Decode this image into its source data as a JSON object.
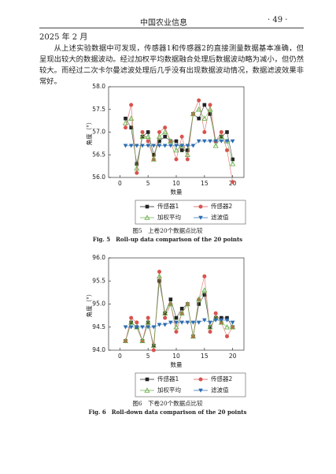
{
  "header": {
    "journal": "中国农业信息",
    "page": "· 49 ·",
    "date": "2025 年 2 月"
  },
  "paragraph": "从上述实验数据中可发现，传感器1和传感器2的直接测量数据基本准确，但呈现出较大的数据波动。经过加权平均数据融合处理后数据波动略为减小，但仍然较大。而经过二次卡尔曼滤波处理后几乎没有出现数据波动情况，数据滤波效果非常好。",
  "chart_data": [
    {
      "type": "line",
      "caption_cn": "图5　上卷20个数据点比较",
      "caption_en": "Fig. 5　Roll-up data comparison of the 20 points",
      "xlabel": "数量",
      "ylabel": "角度（°）",
      "x": [
        1,
        2,
        3,
        4,
        5,
        6,
        7,
        8,
        9,
        10,
        11,
        12,
        13,
        14,
        15,
        16,
        17,
        18,
        19,
        20
      ],
      "xlim": [
        -2,
        22
      ],
      "xticks": [
        0,
        5,
        10,
        15,
        20
      ],
      "ylim": [
        56,
        58
      ],
      "yticks": [
        {
          "value": 56,
          "label": "56.0"
        },
        {
          "value": 56.5,
          "label": "56.5"
        },
        {
          "value": 57,
          "label": "57.0"
        },
        {
          "value": 57.5,
          "label": "57.5"
        },
        {
          "value": 58,
          "label": "58.0"
        }
      ],
      "series": [
        {
          "name": "传感器1",
          "color": "#222222",
          "marker": "square",
          "values": [
            57.3,
            57.1,
            56.3,
            56.9,
            57.0,
            56.5,
            56.8,
            56.9,
            56.8,
            56.8,
            56.6,
            56.6,
            57.4,
            57.3,
            57.6,
            57.4,
            56.8,
            56.9,
            57.0,
            56.4
          ]
        },
        {
          "name": "传感器2",
          "color": "#d9534f",
          "marker": "circle",
          "values": [
            57.1,
            57.6,
            56.1,
            57.0,
            56.8,
            56.4,
            57.0,
            57.1,
            56.8,
            56.4,
            56.9,
            56.4,
            57.4,
            57.7,
            57.0,
            57.6,
            56.8,
            57.0,
            56.6,
            55.9
          ]
        },
        {
          "name": "加权平均",
          "color": "#6ab04c",
          "marker": "triangle",
          "values": [
            57.2,
            57.3,
            56.2,
            56.9,
            56.9,
            56.4,
            56.9,
            57.0,
            56.8,
            56.6,
            56.7,
            56.5,
            57.4,
            57.5,
            57.3,
            57.5,
            56.7,
            56.9,
            56.8,
            56.3
          ]
        },
        {
          "name": "滤波值",
          "color": "#2b6cb0",
          "marker": "down",
          "values": [
            56.7,
            56.7,
            56.7,
            56.7,
            56.7,
            56.7,
            56.7,
            56.7,
            56.7,
            56.7,
            56.7,
            56.7,
            56.7,
            56.8,
            56.8,
            56.8,
            56.8,
            56.8,
            56.8,
            56.8
          ]
        }
      ]
    },
    {
      "type": "line",
      "caption_cn": "图6　下卷20个数据点比较",
      "caption_en": "Fig. 6　Roll-down data comparison of the 20 points",
      "xlabel": "数量",
      "ylabel": "角度（°）",
      "x": [
        1,
        2,
        3,
        4,
        5,
        6,
        7,
        8,
        9,
        10,
        11,
        12,
        13,
        14,
        15,
        16,
        17,
        18,
        19,
        20
      ],
      "xlim": [
        -2,
        22
      ],
      "xticks": [
        0,
        5,
        10,
        15,
        20
      ],
      "ylim": [
        94,
        96
      ],
      "yticks": [
        {
          "value": 94,
          "label": "94.0"
        },
        {
          "value": 94.5,
          "label": "94.5"
        },
        {
          "value": 95,
          "label": "95.0"
        },
        {
          "value": 95.5,
          "label": "95.5"
        },
        {
          "value": 96,
          "label": "96.0"
        }
      ],
      "series": [
        {
          "name": "传感器1",
          "color": "#222222",
          "marker": "square",
          "values": [
            94.2,
            94.6,
            94.5,
            94.2,
            94.6,
            94.1,
            95.5,
            94.8,
            95.1,
            94.7,
            94.9,
            95.0,
            94.3,
            95.0,
            95.2,
            94.5,
            94.7,
            94.7,
            94.7,
            94.5
          ]
        },
        {
          "name": "传感器2",
          "color": "#d9534f",
          "marker": "circle",
          "values": [
            94.2,
            94.7,
            94.6,
            94.2,
            94.7,
            94.0,
            95.7,
            94.7,
            95.0,
            94.4,
            94.8,
            95.0,
            94.3,
            95.1,
            95.6,
            94.4,
            94.8,
            94.6,
            94.3,
            94.5
          ]
        },
        {
          "name": "加权平均",
          "color": "#6ab04c",
          "marker": "triangle",
          "values": [
            94.2,
            94.6,
            94.5,
            94.2,
            94.6,
            94.1,
            95.6,
            94.8,
            95.0,
            94.5,
            94.8,
            95.0,
            94.3,
            95.1,
            95.3,
            94.5,
            94.7,
            94.6,
            94.5,
            94.5
          ]
        },
        {
          "name": "滤波值",
          "color": "#2b6cb0",
          "marker": "down",
          "values": [
            94.5,
            94.5,
            94.5,
            94.5,
            94.5,
            94.5,
            94.55,
            94.55,
            94.6,
            94.6,
            94.6,
            94.6,
            94.6,
            94.6,
            94.65,
            94.6,
            94.65,
            94.65,
            94.65,
            94.6
          ]
        }
      ]
    }
  ]
}
